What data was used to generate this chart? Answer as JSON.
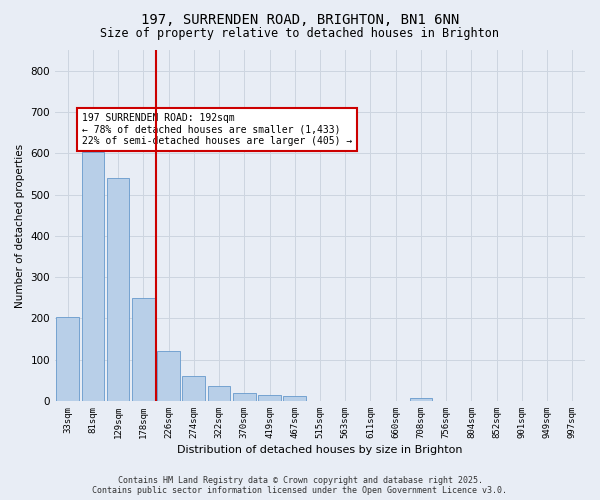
{
  "title": "197, SURRENDEN ROAD, BRIGHTON, BN1 6NN",
  "subtitle": "Size of property relative to detached houses in Brighton",
  "xlabel": "Distribution of detached houses by size in Brighton",
  "ylabel": "Number of detached properties",
  "categories": [
    "33sqm",
    "81sqm",
    "129sqm",
    "178sqm",
    "226sqm",
    "274sqm",
    "322sqm",
    "370sqm",
    "419sqm",
    "467sqm",
    "515sqm",
    "563sqm",
    "611sqm",
    "660sqm",
    "708sqm",
    "756sqm",
    "804sqm",
    "852sqm",
    "901sqm",
    "949sqm",
    "997sqm"
  ],
  "values": [
    203,
    604,
    540,
    250,
    120,
    60,
    35,
    20,
    15,
    11,
    0,
    0,
    0,
    0,
    7,
    0,
    0,
    0,
    0,
    0,
    0
  ],
  "bar_color": "#b8cfe8",
  "bar_edge_color": "#6699cc",
  "grid_color": "#cdd5e0",
  "background_color": "#e8edf5",
  "vline_x_index": 3,
  "vline_color": "#cc0000",
  "annotation_text": "197 SURRENDEN ROAD: 192sqm\n← 78% of detached houses are smaller (1,433)\n22% of semi-detached houses are larger (405) →",
  "annotation_box_color": "#ffffff",
  "annotation_box_edge": "#cc0000",
  "footer1": "Contains HM Land Registry data © Crown copyright and database right 2025.",
  "footer2": "Contains public sector information licensed under the Open Government Licence v3.0.",
  "ylim": [
    0,
    850
  ],
  "yticks": [
    0,
    100,
    200,
    300,
    400,
    500,
    600,
    700,
    800
  ]
}
